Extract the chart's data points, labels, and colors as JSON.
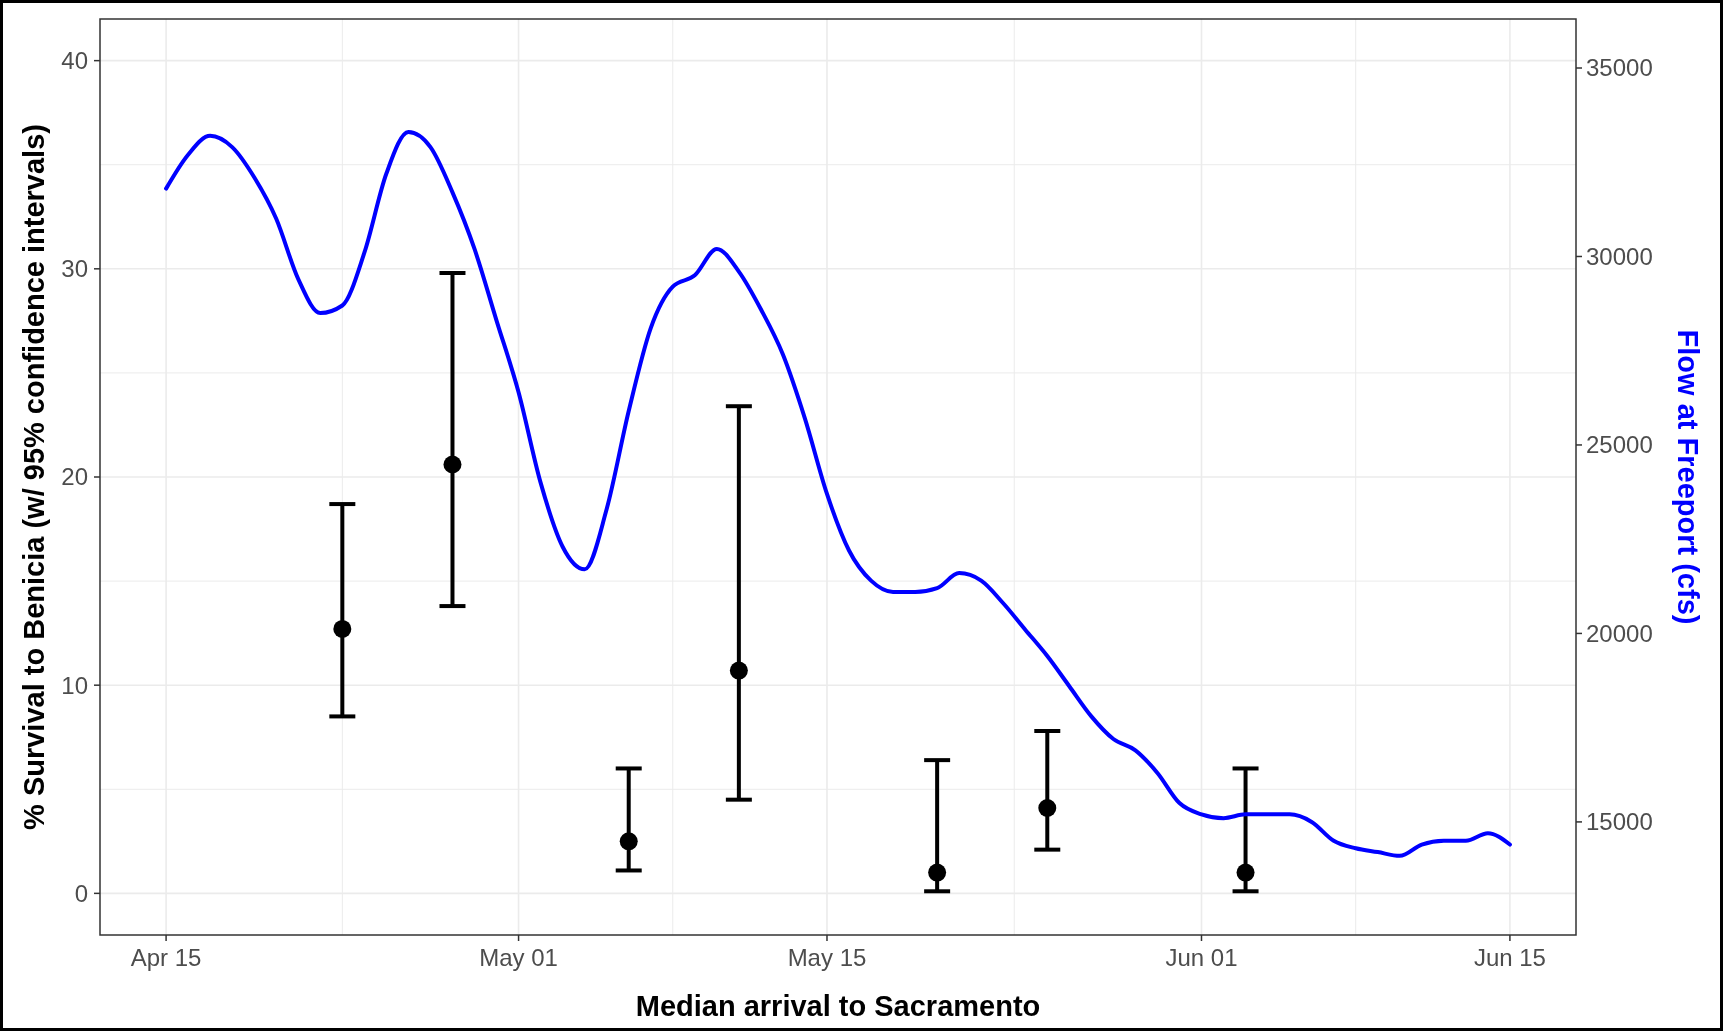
{
  "chart_data": {
    "type": "scatter",
    "xlabel": "Median arrival to Sacramento",
    "ylabel": "% Survival to Benicia (w/ 95% confidence intervals)",
    "y2label": "Flow at Freeport (cfs)",
    "xlim": [
      "--04-12",
      "--06-18"
    ],
    "xticks": [
      {
        "value": "--04-15",
        "label": "Apr 15"
      },
      {
        "value": "--05-01",
        "label": "May 01"
      },
      {
        "value": "--05-15",
        "label": "May 15"
      },
      {
        "value": "--06-01",
        "label": "Jun 01"
      },
      {
        "value": "--06-15",
        "label": "Jun 15"
      }
    ],
    "ylim": [
      -2,
      42
    ],
    "yticks": [
      0,
      10,
      20,
      30,
      40
    ],
    "y2lim": [
      12000,
      36300
    ],
    "y2ticks": [
      15000,
      20000,
      25000,
      30000,
      35000
    ],
    "grid": true,
    "series": [
      {
        "color": "#000000",
        "marker": "circle",
        "x": [
          "--04-23",
          "--04-28",
          "--05-06",
          "--05-11",
          "--05-20",
          "--05-25",
          "--06-03"
        ],
        "values": [
          12.7,
          20.6,
          2.5,
          10.7,
          1.0,
          4.1,
          1.0
        ],
        "errors": [
          [
            8.5,
            18.7
          ],
          [
            13.8,
            29.8
          ],
          [
            1.1,
            6.0
          ],
          [
            4.5,
            23.4
          ],
          [
            0.1,
            6.4
          ],
          [
            2.1,
            7.8
          ],
          [
            0.1,
            6.0
          ]
        ]
      },
      {
        "type": "line",
        "axis": "y2",
        "color": "#0000ff",
        "line_style": "solid",
        "x": [
          "--04-15",
          "--04-16",
          "--04-17",
          "--04-18",
          "--04-19",
          "--04-20",
          "--04-21",
          "--04-22",
          "--04-23",
          "--04-24",
          "--04-25",
          "--04-26",
          "--04-27",
          "--04-28",
          "--04-29",
          "--04-30",
          "--05-01",
          "--05-02",
          "--05-03",
          "--05-04",
          "--05-05",
          "--05-06",
          "--05-07",
          "--05-08",
          "--05-09",
          "--05-10",
          "--05-11",
          "--05-12",
          "--05-13",
          "--05-14",
          "--05-15",
          "--05-16",
          "--05-17",
          "--05-18",
          "--05-19",
          "--05-20",
          "--05-21",
          "--05-22",
          "--05-23",
          "--05-24",
          "--05-25",
          "--05-26",
          "--05-27",
          "--05-28",
          "--05-29",
          "--05-30",
          "--05-31",
          "--06-01",
          "--06-02",
          "--06-03",
          "--06-04",
          "--06-05",
          "--06-06",
          "--06-07",
          "--06-08",
          "--06-09",
          "--06-10",
          "--06-11",
          "--06-12",
          "--06-13",
          "--06-14",
          "--06-15"
        ],
        "values": [
          31800,
          32700,
          33200,
          32900,
          32100,
          31000,
          29400,
          28500,
          28700,
          30100,
          32200,
          33300,
          32900,
          31700,
          30200,
          28300,
          26400,
          24000,
          22300,
          21700,
          23300,
          25900,
          28100,
          29200,
          29500,
          30200,
          29600,
          28600,
          27400,
          25700,
          23700,
          22200,
          21400,
          21100,
          21100,
          21200,
          21600,
          21400,
          20800,
          20100,
          19400,
          18600,
          17800,
          17200,
          16900,
          16300,
          15500,
          15200,
          15100,
          15200,
          15200,
          15200,
          15000,
          14500,
          14300,
          14200,
          14100,
          14400,
          14500,
          14500,
          14700,
          14400
        ]
      }
    ]
  }
}
